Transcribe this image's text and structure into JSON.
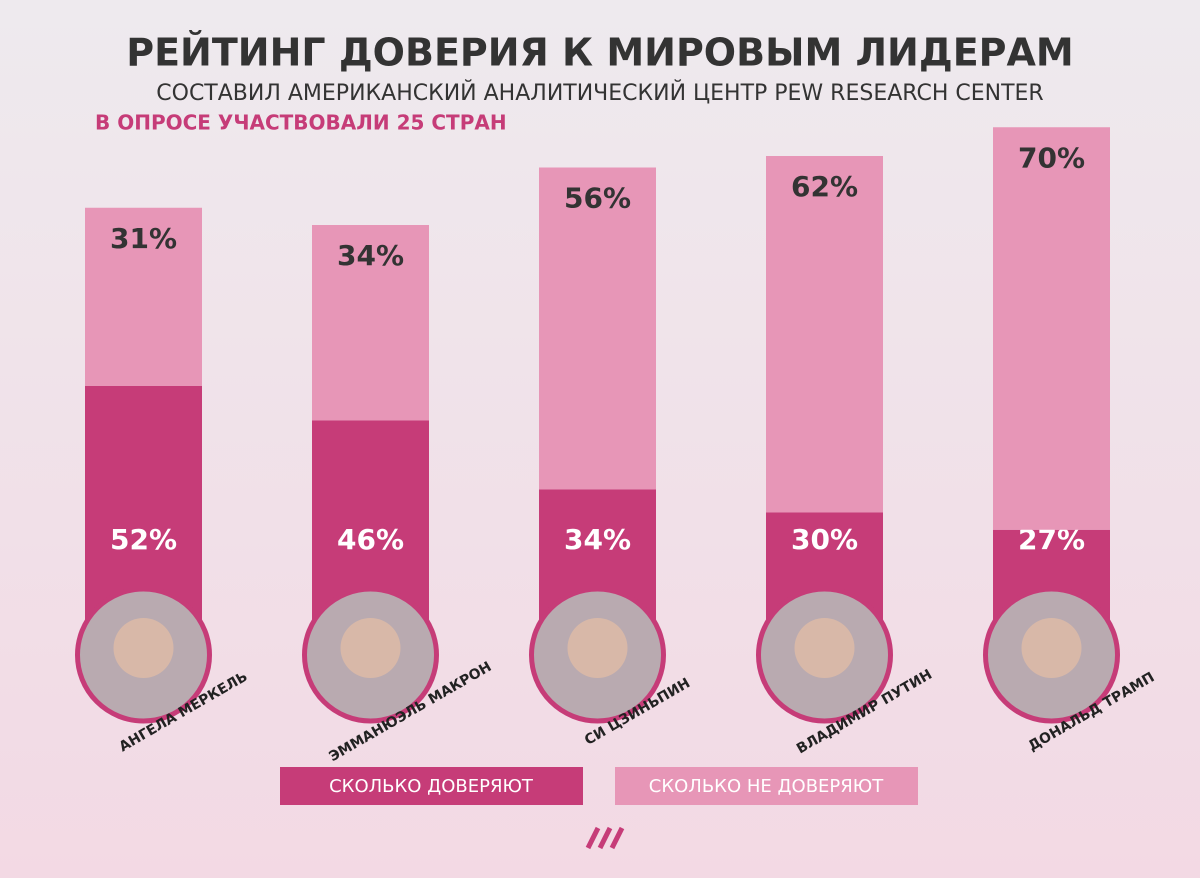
{
  "chart_data": {
    "type": "stacked_bar",
    "title": "РЕЙТИНГ ДОВЕРИЯ К МИРОВЫМ ЛИДЕРАМ",
    "subtitle": "СОСТАВИЛ АМЕРИКАНСКИЙ АНАЛИТИЧЕСКИЙ ЦЕНТР PEW RESEARCH CENTER",
    "annotation": "В ОПРОСЕ УЧАСТВОВАЛИ 25 СТРАН",
    "categories": [
      "АНГЕЛА МЕРКЕЛЬ",
      "ЭММАНЮЭЛЬ МАКРОН",
      "СИ ЦЗИНЬПИН",
      "ВЛАДИМИР ПУТИН",
      "ДОНАЛЬД ТРАМП"
    ],
    "series": [
      {
        "name": "СКОЛЬКО ДОВЕРЯЮТ",
        "color": "#c63c78",
        "values": [
          52,
          46,
          34,
          30,
          27
        ],
        "value_labels": [
          "52%",
          "46%",
          "34%",
          "30%",
          "27%"
        ]
      },
      {
        "name": "СКОЛЬКО НЕ ДОВЕРЯЮТ",
        "color": "#e796b7",
        "values": [
          31,
          34,
          56,
          62,
          70
        ],
        "value_labels": [
          "31%",
          "34%",
          "56%",
          "62%",
          "70%"
        ]
      }
    ]
  }
}
